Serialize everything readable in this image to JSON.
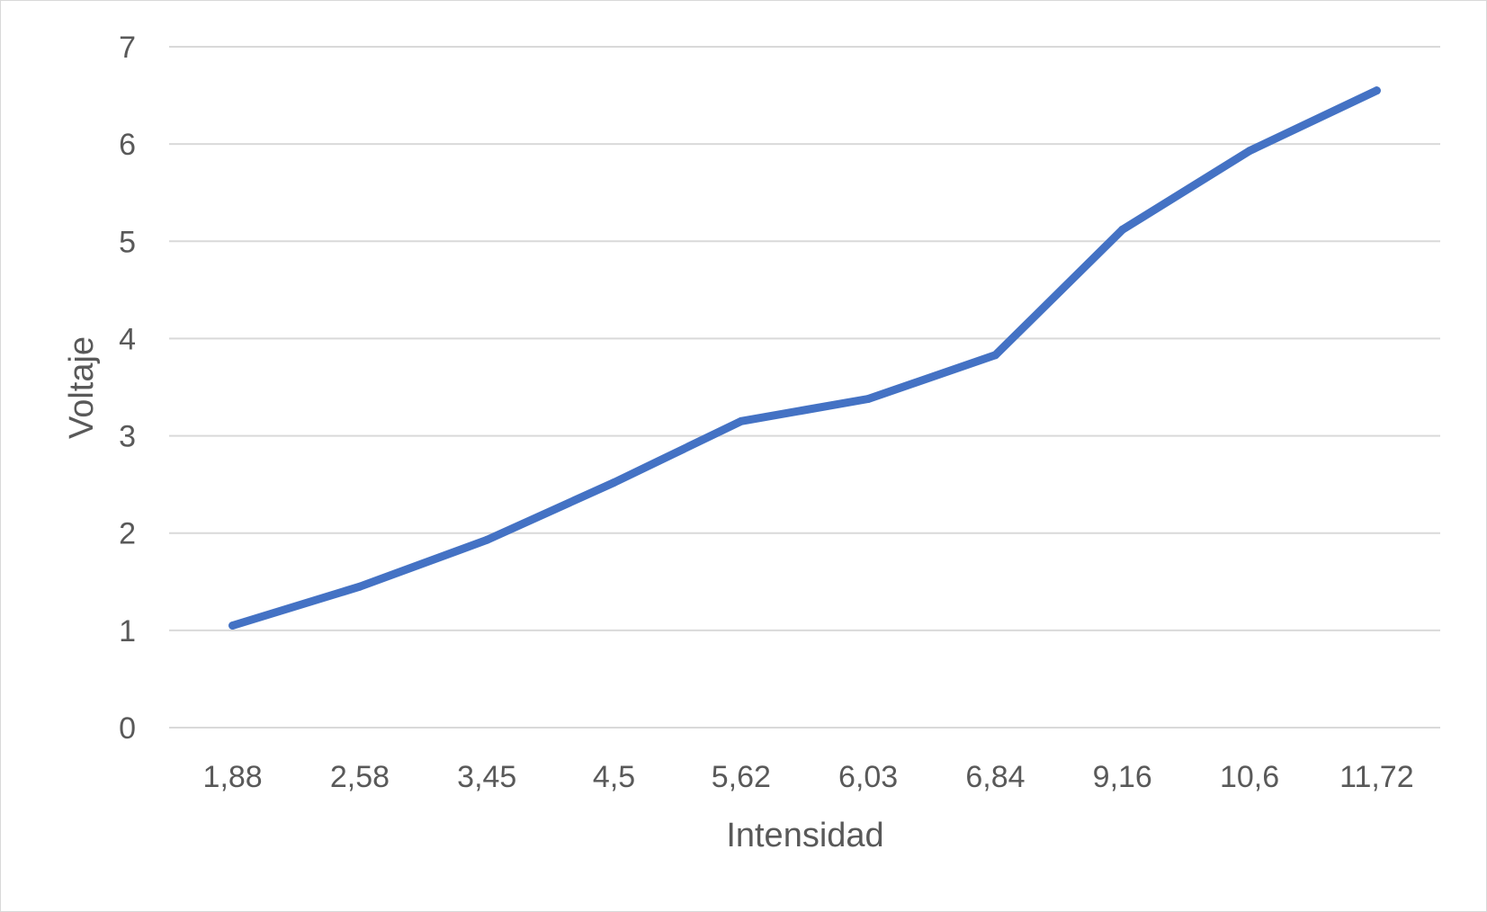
{
  "chart_data": {
    "type": "line",
    "categories": [
      "1,88",
      "2,58",
      "3,45",
      "4,5",
      "5,62",
      "6,03",
      "6,84",
      "9,16",
      "10,6",
      "11,72"
    ],
    "series": [
      {
        "values": [
          1.05,
          1.45,
          1.93,
          2.52,
          3.15,
          3.38,
          3.83,
          5.12,
          5.93,
          6.55
        ],
        "color": "#4472c4"
      }
    ],
    "xlabel": "Intensidad",
    "ylabel": "Voltaje",
    "ylim": [
      0,
      7
    ],
    "yticks": [
      "0",
      "1",
      "2",
      "3",
      "4",
      "5",
      "6",
      "7"
    ],
    "grid": true,
    "legend": "none"
  }
}
